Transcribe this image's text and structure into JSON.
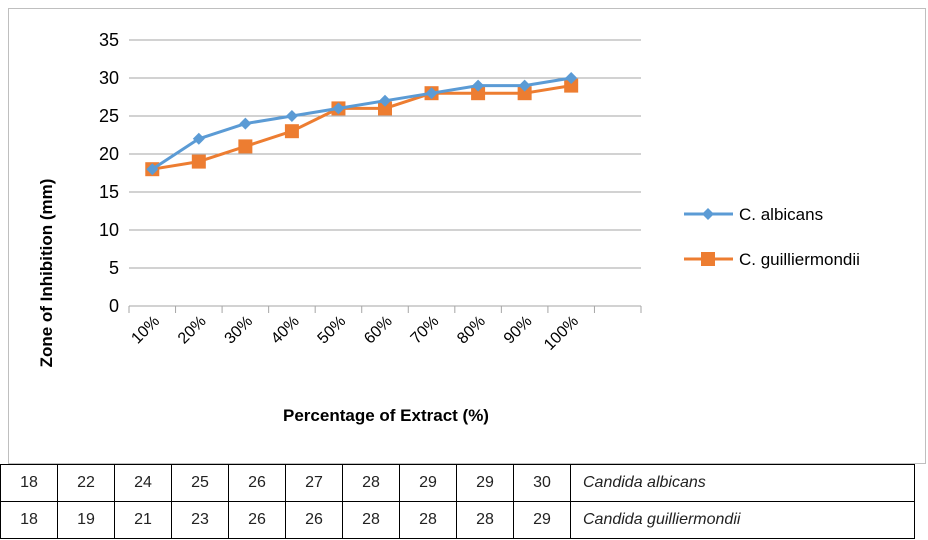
{
  "chart_data": {
    "type": "line",
    "xlabel": "Percentage of Extract (%)",
    "ylabel": "Zone of Inhibition (mm)",
    "categories": [
      "10%",
      "20%",
      "30%",
      "40%",
      "50%",
      "60%",
      "70%",
      "80%",
      "90%",
      "100%"
    ],
    "ylim": [
      0,
      35
    ],
    "yticks": [
      "0",
      "5",
      "10",
      "15",
      "20",
      "25",
      "30",
      "35"
    ],
    "grid": true,
    "legend_position": "right",
    "series": [
      {
        "name": "C. albicans",
        "values": [
          18,
          22,
          24,
          25,
          26,
          27,
          28,
          29,
          29,
          30
        ],
        "color": "#5b9bd5",
        "marker": "diamond"
      },
      {
        "name": "C. guilliermondii",
        "values": [
          18,
          19,
          21,
          23,
          26,
          26,
          28,
          28,
          28,
          29
        ],
        "color": "#ed7d31",
        "marker": "square"
      }
    ]
  },
  "table": {
    "rows": [
      {
        "values": [
          "18",
          "22",
          "24",
          "25",
          "26",
          "27",
          "28",
          "29",
          "29",
          "30"
        ],
        "label": "Candida albicans"
      },
      {
        "values": [
          "18",
          "19",
          "21",
          "23",
          "26",
          "26",
          "28",
          "28",
          "28",
          "29"
        ],
        "label": "Candida guilliermondii"
      }
    ]
  }
}
